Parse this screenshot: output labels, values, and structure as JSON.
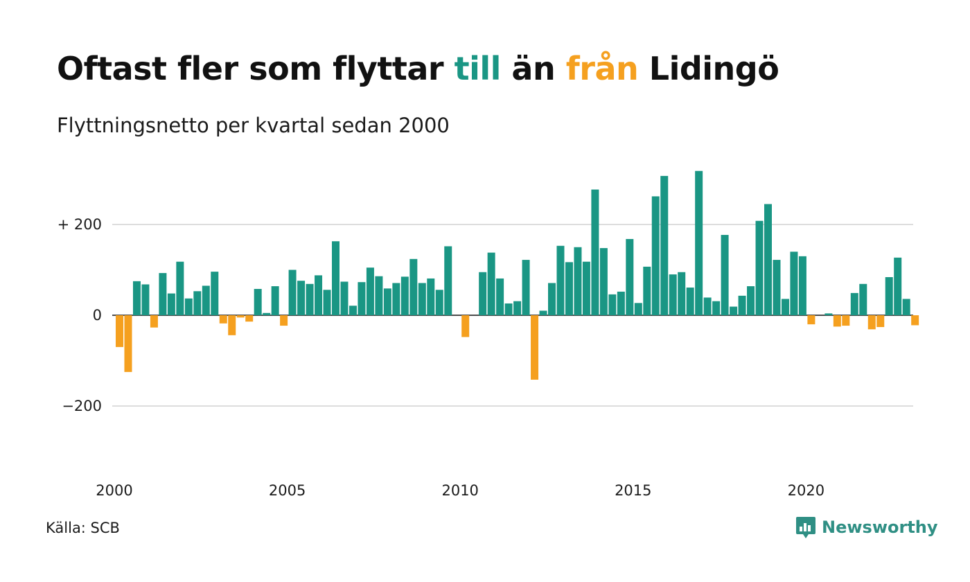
{
  "title": {
    "part1": "Oftast fler som flyttar ",
    "part2": "till",
    "part3": " än ",
    "part4": "från",
    "part5": " Lidingö"
  },
  "subtitle": "Flyttningsnetto per kvartal sedan 2000",
  "source": "Källa: SCB",
  "logo_text": "Newsworthy",
  "colors": {
    "positive": "#1a9684",
    "negative": "#f5a01f",
    "text": "#111111",
    "grid": "#dddddd",
    "logo": "#2f8f84"
  },
  "chart_data": {
    "type": "bar",
    "title": "Oftast fler som flyttar till än från Lidingö",
    "subtitle": "Flyttningsnetto per kvartal sedan 2000",
    "ylim": [
      -350,
      330
    ],
    "y_ticks": [
      {
        "value": 200,
        "label": "+ 200"
      },
      {
        "value": 0,
        "label": "0"
      },
      {
        "value": -200,
        "label": "−200"
      }
    ],
    "x_ticks": [
      {
        "year": 2000,
        "label": "2000"
      },
      {
        "year": 2005,
        "label": "2005"
      },
      {
        "year": 2010,
        "label": "2010"
      },
      {
        "year": 2015,
        "label": "2015"
      },
      {
        "year": 2020,
        "label": "2020"
      }
    ],
    "start_year": 2000,
    "grid": true,
    "values": [
      -70,
      -125,
      75,
      68,
      -27,
      93,
      48,
      118,
      37,
      53,
      65,
      96,
      -18,
      -44,
      -5,
      -14,
      58,
      5,
      64,
      -23,
      100,
      76,
      69,
      88,
      56,
      163,
      74,
      21,
      73,
      105,
      86,
      59,
      71,
      85,
      124,
      71,
      81,
      56,
      152,
      0,
      -48,
      0,
      95,
      138,
      81,
      26,
      31,
      122,
      -142,
      10,
      71,
      153,
      117,
      150,
      118,
      277,
      148,
      46,
      52,
      168,
      27,
      107,
      262,
      307,
      90,
      95,
      61,
      318,
      39,
      31,
      177,
      19,
      43,
      64,
      208,
      245,
      122,
      36,
      140,
      130,
      -20,
      0,
      4,
      -25,
      -23,
      49,
      69,
      -31,
      -26,
      84,
      127,
      36,
      -22
    ]
  }
}
